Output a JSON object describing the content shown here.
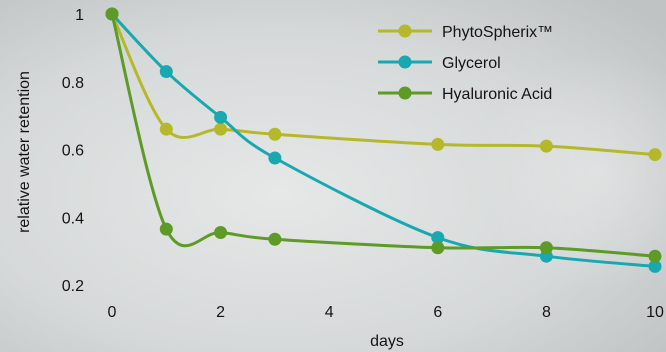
{
  "chart_data": {
    "type": "line",
    "xlabel": "days",
    "ylabel": "relative water retention",
    "xlim": [
      0,
      10
    ],
    "ylim": [
      0.2,
      1.0
    ],
    "xticks": [
      "0",
      "2",
      "4",
      "6",
      "8",
      "10"
    ],
    "yticks": [
      "0.2",
      "0.4",
      "0.6",
      "0.8",
      "1"
    ],
    "grid": false,
    "legend_position": "top-right",
    "series": [
      {
        "name": "PhytoSpherix™",
        "color": "#b5b82a",
        "x": [
          0,
          1,
          2,
          3,
          6,
          8,
          10
        ],
        "y": [
          1.0,
          0.66,
          0.66,
          0.645,
          0.615,
          0.61,
          0.585
        ]
      },
      {
        "name": "Glycerol",
        "color": "#1aa8b0",
        "x": [
          0,
          1,
          2,
          3,
          6,
          8,
          10
        ],
        "y": [
          1.0,
          0.83,
          0.695,
          0.575,
          0.34,
          0.285,
          0.255
        ]
      },
      {
        "name": "Hyaluronic Acid",
        "color": "#5e9a26",
        "x": [
          0,
          1,
          2,
          3,
          6,
          8,
          10
        ],
        "y": [
          1.0,
          0.365,
          0.355,
          0.335,
          0.31,
          0.31,
          0.285
        ]
      }
    ]
  }
}
